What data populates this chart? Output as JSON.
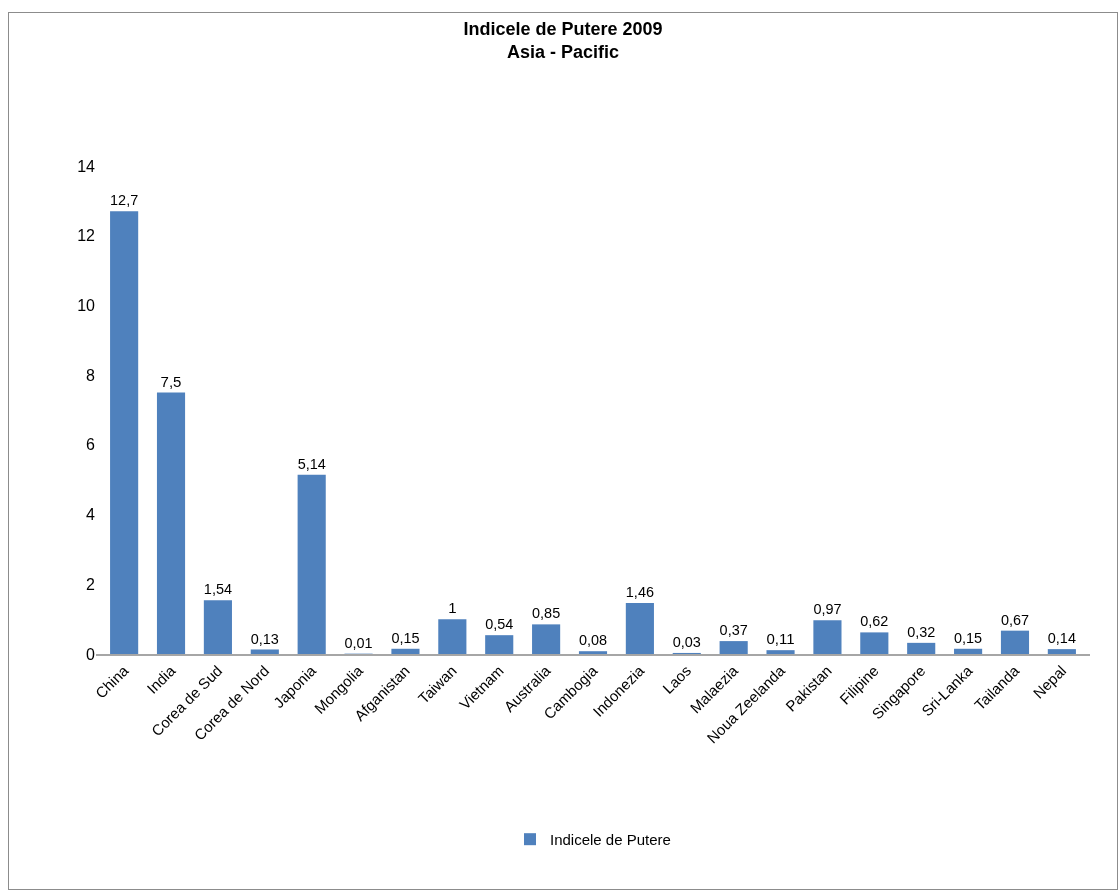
{
  "chart_data": {
    "type": "bar",
    "title": "Indicele de Putere 2009",
    "subtitle": "Asia - Pacific",
    "categories": [
      "China",
      "India",
      "Corea de Sud",
      "Corea de Nord",
      "Japonia",
      "Mongolia",
      "Afganistan",
      "Taiwan",
      "Vietnam",
      "Australia",
      "Cambogia",
      "Indonezia",
      "Laos",
      "Malaezia",
      "Noua Zeelanda",
      "Pakistan",
      "Filipine",
      "Singapore",
      "Sri-Lanka",
      "Tailanda",
      "Nepal"
    ],
    "series": [
      {
        "name": "Indicele de Putere",
        "color": "#4f81bd",
        "values": [
          12.7,
          7.5,
          1.54,
          0.13,
          5.14,
          0.01,
          0.15,
          1,
          0.54,
          0.85,
          0.08,
          1.46,
          0.03,
          0.37,
          0.11,
          0.97,
          0.62,
          0.32,
          0.15,
          0.67,
          0.14
        ],
        "value_labels": [
          "12,7",
          "7,5",
          "1,54",
          "0,13",
          "5,14",
          "0,01",
          "0,15",
          "1",
          "0,54",
          "0,85",
          "0,08",
          "1,46",
          "0,03",
          "0,37",
          "0,11",
          "0,97",
          "0,62",
          "0,32",
          "0,15",
          "0,67",
          "0,14"
        ]
      }
    ],
    "ylim": [
      0,
      14
    ],
    "yticks": [
      0,
      2,
      4,
      6,
      8,
      10,
      12,
      14
    ],
    "grid": false,
    "legend": "bottom"
  }
}
